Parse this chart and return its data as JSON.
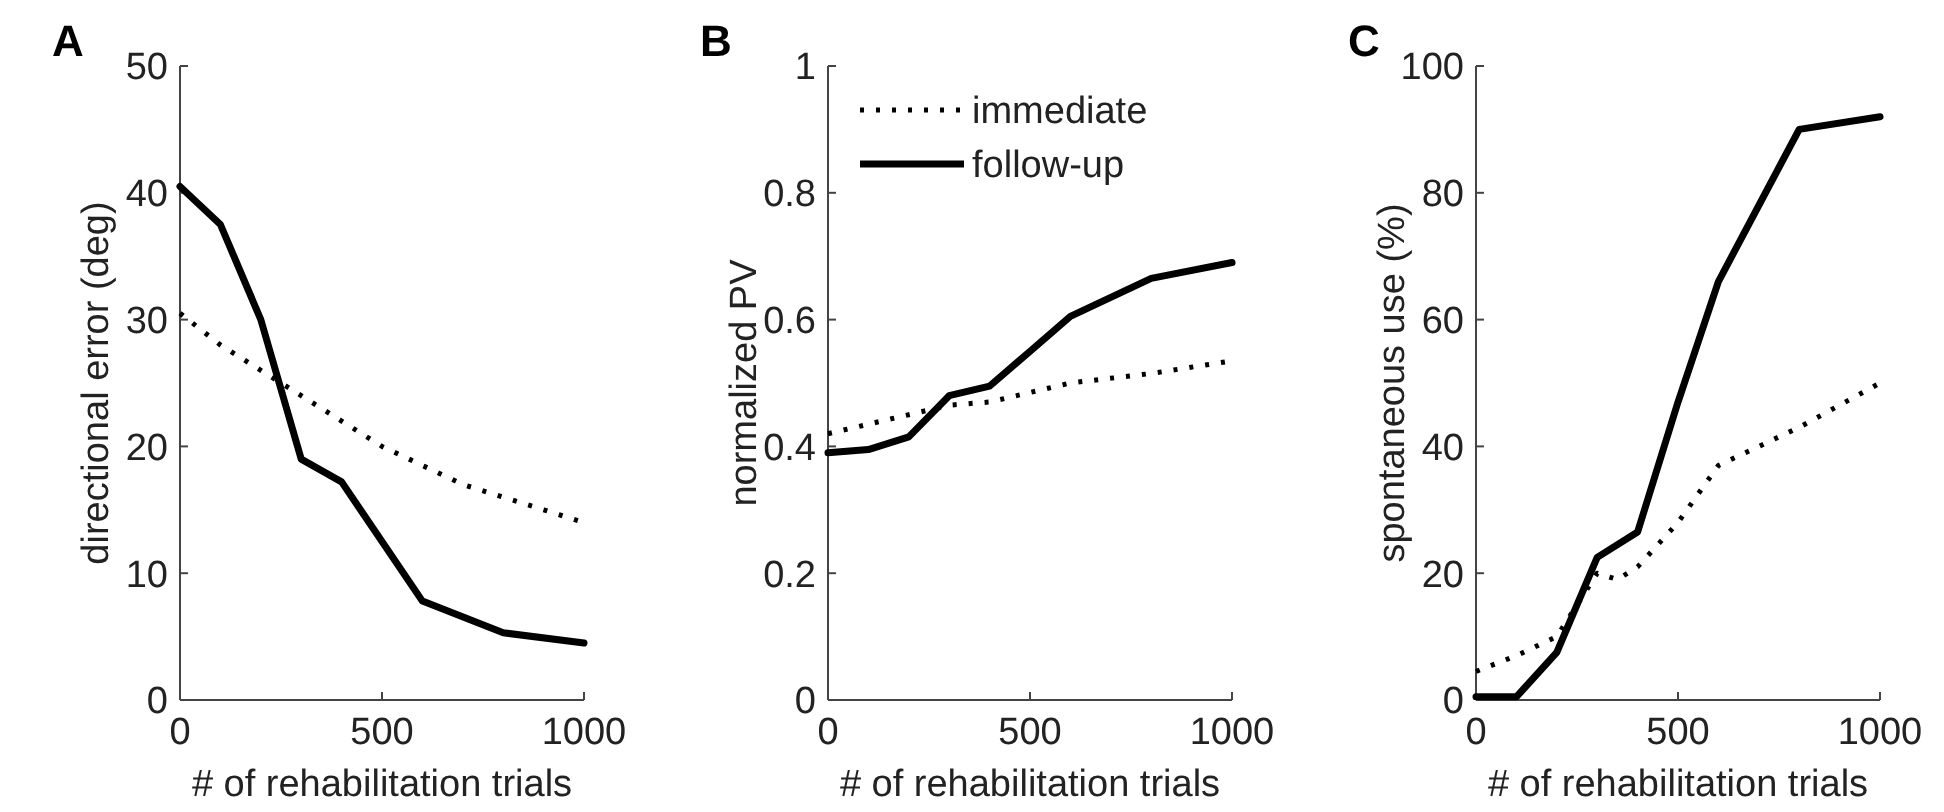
{
  "chart_data": [
    {
      "type": "line",
      "title": "A",
      "xlabel": "# of rehabilitation trials",
      "ylabel": "directional error (deg)",
      "xlim": [
        0,
        1000
      ],
      "xticks": [
        0,
        500,
        1000
      ],
      "ylim": [
        0,
        50
      ],
      "yticks": [
        0,
        10,
        20,
        30,
        40,
        50
      ],
      "legend": false,
      "grid": false,
      "series": [
        {
          "color": "#000000",
          "line_style": "dotted",
          "x": [
            0,
            100,
            200,
            300,
            400,
            500,
            600,
            700,
            800,
            900,
            1000
          ],
          "values": [
            30.5,
            28,
            26,
            24,
            22,
            20,
            18.5,
            17,
            16,
            15,
            14
          ]
        },
        {
          "color": "#000000",
          "line_style": "solid",
          "x": [
            0,
            100,
            200,
            300,
            400,
            600,
            800,
            1000
          ],
          "values": [
            40.5,
            37.5,
            30,
            19,
            17.2,
            7.8,
            5.3,
            4.5
          ]
        }
      ]
    },
    {
      "type": "line",
      "title": "B",
      "xlabel": "# of rehabilitation trials",
      "ylabel": "normalized PV",
      "xlim": [
        0,
        1000
      ],
      "xticks": [
        0,
        500,
        1000
      ],
      "ylim": [
        0,
        1
      ],
      "yticks": [
        0,
        0.2,
        0.4,
        0.6,
        0.8,
        1
      ],
      "legend": "top left",
      "grid": false,
      "series": [
        {
          "name": "immediate",
          "color": "#000000",
          "line_style": "dotted",
          "x": [
            0,
            200,
            300,
            400,
            600,
            800,
            1000
          ],
          "values": [
            0.42,
            0.45,
            0.465,
            0.47,
            0.5,
            0.515,
            0.535
          ]
        },
        {
          "name": "follow-up",
          "color": "#000000",
          "line_style": "solid",
          "x": [
            0,
            100,
            200,
            300,
            400,
            500,
            600,
            800,
            1000
          ],
          "values": [
            0.39,
            0.395,
            0.415,
            0.48,
            0.495,
            0.55,
            0.605,
            0.665,
            0.69
          ]
        }
      ]
    },
    {
      "type": "line",
      "title": "C",
      "xlabel": "# of rehabilitation trials",
      "ylabel": "spontaneous use (%)",
      "xlim": [
        0,
        1000
      ],
      "xticks": [
        0,
        500,
        1000
      ],
      "ylim": [
        0,
        100
      ],
      "yticks": [
        0,
        20,
        40,
        60,
        80,
        100
      ],
      "legend": false,
      "grid": false,
      "series": [
        {
          "color": "#000000",
          "line_style": "dotted",
          "x": [
            0,
            100,
            200,
            300,
            350,
            400,
            500,
            600,
            800,
            1000
          ],
          "values": [
            4.5,
            7,
            10,
            20,
            19,
            21,
            28,
            37,
            43,
            50
          ]
        },
        {
          "color": "#000000",
          "line_style": "solid",
          "x": [
            0,
            100,
            200,
            300,
            400,
            500,
            600,
            800,
            1000
          ],
          "values": [
            0.5,
            0.5,
            7.5,
            22.5,
            26.5,
            47,
            66,
            90,
            92
          ]
        }
      ]
    }
  ]
}
